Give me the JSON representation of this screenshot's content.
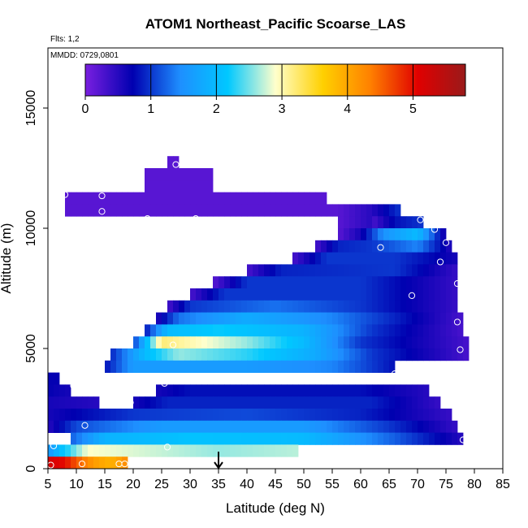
{
  "chart_data": {
    "type": "heatmap",
    "title": "ATOM1 Northeast_Pacific Scoarse_LAS",
    "flights_label": "Flts: 1,2",
    "mmdd_label": "MMDD: 0729,0801",
    "xlabel": "Latitude (deg N)",
    "ylabel": "Altitude (m)",
    "xlim": [
      5,
      85
    ],
    "ylim": [
      0,
      17500
    ],
    "x_ticks": [
      5,
      10,
      15,
      20,
      25,
      30,
      35,
      40,
      45,
      50,
      55,
      60,
      65,
      70,
      75,
      80,
      85
    ],
    "x_tick_labels": [
      "5",
      "10",
      "15",
      "20",
      "25",
      "30",
      "35",
      "40",
      "45",
      "50",
      "55",
      "60",
      "65",
      "70",
      "75",
      "80",
      "85"
    ],
    "y_ticks": [
      0,
      5000,
      10000,
      15000
    ],
    "y_tick_labels": [
      "0",
      "5000",
      "10000",
      "15000"
    ],
    "colorbar": {
      "range": [
        0,
        5.8
      ],
      "ticks": [
        0,
        1,
        2,
        3,
        4,
        5
      ],
      "tick_labels": [
        "0",
        "1",
        "2",
        "3",
        "4",
        "5"
      ],
      "colors": [
        "#7a1fe0",
        "#0000b0",
        "#1e8fff",
        "#00c8ff",
        "#ffffcc",
        "#ffd000",
        "#ff8000",
        "#e00000",
        "#9a1a1a"
      ]
    },
    "grid": false,
    "cell_size": {
      "latitude_deg": 1,
      "altitude_m": 500
    },
    "bands": [
      {
        "alt_range": [
          11000,
          11500
        ],
        "lat_range": [
          8,
          54
        ],
        "profile": [
          [
            8,
            0.2
          ],
          [
            54,
            0.2
          ]
        ]
      },
      {
        "alt_range": [
          11500,
          12000
        ],
        "lat_range": [
          22,
          34
        ],
        "profile": [
          [
            22,
            0.2
          ],
          [
            34,
            0.2
          ]
        ]
      },
      {
        "alt_range": [
          12000,
          12500
        ],
        "lat_range": [
          22,
          34
        ],
        "profile": [
          [
            22,
            0.2
          ],
          [
            34,
            0.2
          ]
        ]
      },
      {
        "alt_range": [
          12500,
          13000
        ],
        "lat_range": [
          26,
          28
        ],
        "profile": [
          [
            26,
            0.2
          ],
          [
            28,
            0.2
          ]
        ]
      },
      {
        "alt_range": [
          10500,
          11000
        ],
        "lat_range": [
          8,
          56
        ],
        "profile": [
          [
            8,
            0.2
          ],
          [
            56,
            0.2
          ]
        ]
      },
      {
        "alt_range": [
          10000,
          11000
        ],
        "lat_range": [
          56,
          67
        ],
        "profile": [
          [
            56,
            0.2
          ],
          [
            62,
            0.5
          ],
          [
            67,
            1.0
          ]
        ]
      },
      {
        "alt_range": [
          10000,
          10500
        ],
        "lat_range": [
          62,
          71
        ],
        "profile": [
          [
            62,
            0.3
          ],
          [
            66,
            0.8
          ],
          [
            71,
            1.0
          ]
        ]
      },
      {
        "alt_range": [
          9500,
          10000
        ],
        "lat_range": [
          56,
          75
        ],
        "profile": [
          [
            56,
            0.2
          ],
          [
            60,
            0.6
          ],
          [
            64,
            1.5
          ],
          [
            70,
            2.0
          ],
          [
            75,
            0.5
          ]
        ]
      },
      {
        "alt_range": [
          9000,
          9500
        ],
        "lat_range": [
          52,
          76
        ],
        "profile": [
          [
            52,
            0.3
          ],
          [
            56,
            0.9
          ],
          [
            62,
            1.0
          ],
          [
            70,
            1.4
          ],
          [
            76,
            0.5
          ]
        ]
      },
      {
        "alt_range": [
          8500,
          9000
        ],
        "lat_range": [
          48,
          77
        ],
        "profile": [
          [
            48,
            0.3
          ],
          [
            54,
            1.0
          ],
          [
            66,
            1.0
          ],
          [
            77,
            0.6
          ]
        ]
      },
      {
        "alt_range": [
          8000,
          8500
        ],
        "lat_range": [
          40,
          77
        ],
        "profile": [
          [
            40,
            0.3
          ],
          [
            46,
            0.9
          ],
          [
            66,
            1.0
          ],
          [
            77,
            0.4
          ]
        ]
      },
      {
        "alt_range": [
          7500,
          8000
        ],
        "lat_range": [
          34,
          77
        ],
        "profile": [
          [
            34,
            0.2
          ],
          [
            40,
            1.0
          ],
          [
            60,
            1.0
          ],
          [
            77,
            0.4
          ]
        ]
      },
      {
        "alt_range": [
          7000,
          7500
        ],
        "lat_range": [
          30,
          77
        ],
        "profile": [
          [
            30,
            0.3
          ],
          [
            36,
            1.0
          ],
          [
            60,
            1.0
          ],
          [
            77,
            0.4
          ]
        ]
      },
      {
        "alt_range": [
          6500,
          7000
        ],
        "lat_range": [
          26,
          77
        ],
        "profile": [
          [
            26,
            0.3
          ],
          [
            30,
            1.0
          ],
          [
            45,
            1.3
          ],
          [
            60,
            1.0
          ],
          [
            77,
            0.4
          ]
        ]
      },
      {
        "alt_range": [
          6000,
          6500
        ],
        "lat_range": [
          24,
          78
        ],
        "profile": [
          [
            24,
            0.5
          ],
          [
            28,
            1.3
          ],
          [
            40,
            1.8
          ],
          [
            55,
            1.4
          ],
          [
            66,
            0.9
          ],
          [
            78,
            0.3
          ]
        ]
      },
      {
        "alt_range": [
          5500,
          6000
        ],
        "lat_range": [
          22,
          78
        ],
        "profile": [
          [
            22,
            0.8
          ],
          [
            26,
            2.0
          ],
          [
            35,
            2.2
          ],
          [
            50,
            1.9
          ],
          [
            62,
            1.0
          ],
          [
            78,
            0.3
          ]
        ]
      },
      {
        "alt_range": [
          5000,
          5500
        ],
        "lat_range": [
          20,
          79
        ],
        "profile": [
          [
            20,
            1.0
          ],
          [
            25,
            3.2
          ],
          [
            30,
            3.0
          ],
          [
            40,
            2.6
          ],
          [
            50,
            2.0
          ],
          [
            60,
            1.0
          ],
          [
            79,
            0.3
          ]
        ]
      },
      {
        "alt_range": [
          4500,
          5000
        ],
        "lat_range": [
          16,
          79
        ],
        "profile": [
          [
            16,
            0.9
          ],
          [
            22,
            2.0
          ],
          [
            28,
            2.6
          ],
          [
            40,
            2.3
          ],
          [
            52,
            1.8
          ],
          [
            62,
            1.0
          ],
          [
            79,
            0.3
          ]
        ]
      },
      {
        "alt_range": [
          4000,
          4500
        ],
        "lat_range": [
          15,
          66
        ],
        "profile": [
          [
            15,
            0.8
          ],
          [
            20,
            1.6
          ],
          [
            40,
            1.6
          ],
          [
            55,
            1.4
          ],
          [
            66,
            0.8
          ]
        ]
      },
      {
        "alt_range": [
          3500,
          4000
        ],
        "lat_range": [
          5,
          7
        ],
        "profile": [
          [
            5,
            0.7
          ],
          [
            7,
            0.7
          ]
        ]
      },
      {
        "alt_range": [
          3000,
          3500
        ],
        "lat_range": [
          5,
          9
        ],
        "profile": [
          [
            5,
            0.7
          ],
          [
            9,
            0.6
          ]
        ]
      },
      {
        "alt_range": [
          3000,
          3500
        ],
        "lat_range": [
          24,
          72
        ],
        "profile": [
          [
            24,
            0.6
          ],
          [
            30,
            0.8
          ],
          [
            60,
            0.8
          ],
          [
            72,
            0.5
          ]
        ]
      },
      {
        "alt_range": [
          2500,
          3000
        ],
        "lat_range": [
          5,
          14
        ],
        "profile": [
          [
            5,
            0.6
          ],
          [
            14,
            0.5
          ]
        ]
      },
      {
        "alt_range": [
          2500,
          3000
        ],
        "lat_range": [
          20,
          74
        ],
        "profile": [
          [
            20,
            0.6
          ],
          [
            26,
            0.9
          ],
          [
            62,
            0.9
          ],
          [
            74,
            0.4
          ]
        ]
      },
      {
        "alt_range": [
          2000,
          2500
        ],
        "lat_range": [
          5,
          76
        ],
        "profile": [
          [
            5,
            0.6
          ],
          [
            20,
            1.0
          ],
          [
            40,
            1.1
          ],
          [
            60,
            0.9
          ],
          [
            76,
            0.4
          ]
        ]
      },
      {
        "alt_range": [
          1500,
          2000
        ],
        "lat_range": [
          5,
          77
        ],
        "profile": [
          [
            5,
            0.5
          ],
          [
            10,
            1.1
          ],
          [
            25,
            1.6
          ],
          [
            50,
            1.6
          ],
          [
            65,
            1.0
          ],
          [
            77,
            0.4
          ]
        ]
      },
      {
        "alt_range": [
          1000,
          1500
        ],
        "lat_range": [
          9,
          78
        ],
        "profile": [
          [
            9,
            1.2
          ],
          [
            15,
            1.9
          ],
          [
            30,
            2.1
          ],
          [
            50,
            2.0
          ],
          [
            66,
            1.2
          ],
          [
            78,
            0.5
          ]
        ]
      },
      {
        "alt_range": [
          500,
          1000
        ],
        "lat_range": [
          5,
          49
        ],
        "profile": [
          [
            5,
            1.5
          ],
          [
            7,
            2.0
          ],
          [
            12,
            2.9
          ],
          [
            20,
            2.8
          ],
          [
            35,
            2.6
          ],
          [
            49,
            2.7
          ]
        ]
      },
      {
        "alt_range": [
          0,
          500
        ],
        "lat_range": [
          5,
          19
        ],
        "profile": [
          [
            5,
            5.2
          ],
          [
            8,
            5.0
          ],
          [
            10,
            4.6
          ],
          [
            13,
            4.1
          ],
          [
            16,
            3.9
          ],
          [
            18,
            4.1
          ],
          [
            19,
            4.3
          ]
        ]
      }
    ],
    "points": [
      {
        "lat": 5.5,
        "alt": 4800
      },
      {
        "lat": 5.5,
        "alt": 150
      },
      {
        "lat": 6,
        "alt": 950
      },
      {
        "lat": 8,
        "alt": 11400
      },
      {
        "lat": 9.5,
        "alt": 3450
      },
      {
        "lat": 11,
        "alt": 200
      },
      {
        "lat": 11.5,
        "alt": 3900
      },
      {
        "lat": 11.5,
        "alt": 1800
      },
      {
        "lat": 14.5,
        "alt": 11350
      },
      {
        "lat": 14.5,
        "alt": 10700
      },
      {
        "lat": 16,
        "alt": 5500
      },
      {
        "lat": 17.5,
        "alt": 200
      },
      {
        "lat": 18.5,
        "alt": 200
      },
      {
        "lat": 19.5,
        "alt": 9550
      },
      {
        "lat": 19.5,
        "alt": 2750
      },
      {
        "lat": 22.5,
        "alt": 10400
      },
      {
        "lat": 25.5,
        "alt": 3550
      },
      {
        "lat": 26,
        "alt": 900
      },
      {
        "lat": 27,
        "alt": 5150
      },
      {
        "lat": 27.5,
        "alt": 12650
      },
      {
        "lat": 31,
        "alt": 10400
      },
      {
        "lat": 36,
        "alt": 8950
      },
      {
        "lat": 45,
        "alt": 9550
      },
      {
        "lat": 50,
        "alt": 10000
      },
      {
        "lat": 63.5,
        "alt": 9200
      },
      {
        "lat": 66,
        "alt": 3950
      },
      {
        "lat": 67.5,
        "alt": 11400
      },
      {
        "lat": 69,
        "alt": 7200
      },
      {
        "lat": 70.5,
        "alt": 10350
      },
      {
        "lat": 73,
        "alt": 9950
      },
      {
        "lat": 74,
        "alt": 8600
      },
      {
        "lat": 75,
        "alt": 9400
      },
      {
        "lat": 76,
        "alt": 9700
      },
      {
        "lat": 77,
        "alt": 7700
      },
      {
        "lat": 77,
        "alt": 6100
      },
      {
        "lat": 77.5,
        "alt": 4950
      },
      {
        "lat": 78,
        "alt": 1200
      },
      {
        "lat": 78.5,
        "alt": 2950
      },
      {
        "lat": 79,
        "alt": 5700
      }
    ],
    "marker": {
      "lat": 35,
      "type": "arrow"
    }
  }
}
